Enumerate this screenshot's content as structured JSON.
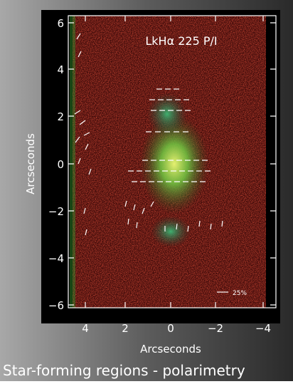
{
  "figure": {
    "title": "LkHα 225 P/I",
    "x_label": "Arcseconds",
    "y_label": "Arcseconds",
    "xticks": [
      "4",
      "2",
      "0",
      "−2",
      "−4"
    ],
    "yticks": [
      "6",
      "4",
      "2",
      "0",
      "−2",
      "−4",
      "−6"
    ],
    "scale_label": "25%"
  },
  "caption": "Star-forming regions - polarimetry"
}
